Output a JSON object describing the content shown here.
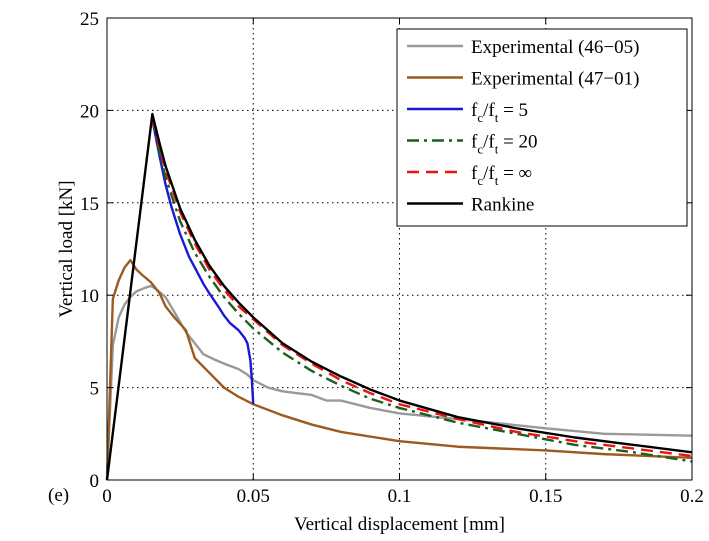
{
  "panel_label": "(e)",
  "chart_data": {
    "type": "line",
    "xlabel": "Vertical displacement [mm]",
    "ylabel": "Vertical load [kN]",
    "xlim": [
      0,
      0.2
    ],
    "ylim": [
      0,
      25
    ],
    "xticks": [
      0,
      0.05,
      0.1,
      0.15,
      0.2
    ],
    "xtick_labels": [
      "0",
      "0.05",
      "0.1",
      "0.15",
      "0.2"
    ],
    "yticks": [
      0,
      5,
      10,
      15,
      20,
      25
    ],
    "ytick_labels": [
      "0",
      "5",
      "10",
      "15",
      "20",
      "25"
    ],
    "grid": true,
    "grid_style": "dotted",
    "legend_position": "top-right",
    "series": [
      {
        "name": "Experimental (46−05)",
        "color": "#999999",
        "dash": "solid",
        "x": [
          0,
          0.002,
          0.004,
          0.006,
          0.008,
          0.01,
          0.013,
          0.015,
          0.017,
          0.02,
          0.023,
          0.027,
          0.03,
          0.033,
          0.037,
          0.04,
          0.045,
          0.048,
          0.05,
          0.055,
          0.06,
          0.065,
          0.07,
          0.075,
          0.08,
          0.09,
          0.1,
          0.12,
          0.15,
          0.17,
          0.2
        ],
        "y": [
          0,
          7.3,
          8.8,
          9.5,
          9.9,
          10.2,
          10.4,
          10.5,
          10.3,
          9.9,
          9.1,
          8.0,
          7.4,
          6.8,
          6.5,
          6.3,
          6.0,
          5.7,
          5.4,
          5.0,
          4.8,
          4.7,
          4.6,
          4.3,
          4.3,
          3.9,
          3.6,
          3.3,
          2.8,
          2.5,
          2.4
        ]
      },
      {
        "name": "Experimental (47−01)",
        "color": "#9c5a1e",
        "dash": "solid",
        "x": [
          0,
          0.002,
          0.004,
          0.006,
          0.008,
          0.01,
          0.012,
          0.015,
          0.018,
          0.02,
          0.023,
          0.027,
          0.03,
          0.035,
          0.04,
          0.045,
          0.05,
          0.06,
          0.07,
          0.08,
          0.1,
          0.12,
          0.15,
          0.17,
          0.2
        ],
        "y": [
          0,
          9.8,
          10.8,
          11.5,
          11.9,
          11.4,
          11.1,
          10.7,
          10.1,
          9.4,
          8.8,
          8.1,
          6.6,
          5.8,
          5.0,
          4.5,
          4.1,
          3.5,
          3.0,
          2.6,
          2.1,
          1.8,
          1.6,
          1.4,
          1.2
        ]
      },
      {
        "name": "f_c/f_t = 5",
        "label_parts": [
          "f",
          "c",
          "/f",
          "t",
          " = 5"
        ],
        "color": "#1a1ad6",
        "dash": "solid",
        "x": [
          0.0155,
          0.018,
          0.02,
          0.022,
          0.025,
          0.028,
          0.03,
          0.033,
          0.035,
          0.038,
          0.04,
          0.042,
          0.045,
          0.047,
          0.048,
          0.049,
          0.0495,
          0.05
        ],
        "y": [
          19.5,
          17.5,
          16.0,
          14.8,
          13.3,
          12.1,
          11.5,
          10.6,
          10.1,
          9.4,
          8.9,
          8.5,
          8.1,
          7.7,
          7.4,
          6.5,
          5.5,
          4.1
        ]
      },
      {
        "name": "f_c/f_t = 20",
        "label_parts": [
          "f",
          "c",
          "/f",
          "t",
          " = 20"
        ],
        "color": "#1e5e1e",
        "dash": "dashdot",
        "x": [
          0.0155,
          0.018,
          0.02,
          0.025,
          0.03,
          0.035,
          0.04,
          0.045,
          0.05,
          0.06,
          0.07,
          0.08,
          0.09,
          0.1,
          0.12,
          0.14,
          0.16,
          0.18,
          0.2
        ],
        "y": [
          19.5,
          17.7,
          16.4,
          14.0,
          12.3,
          11.0,
          9.9,
          9.0,
          8.2,
          6.9,
          5.9,
          5.1,
          4.4,
          3.9,
          3.1,
          2.5,
          1.9,
          1.5,
          1.0
        ]
      },
      {
        "name": "f_c/f_t = ∞",
        "label_parts": [
          "f",
          "c",
          "/f",
          "t",
          " = ∞"
        ],
        "color": "#ee1111",
        "dash": "dash",
        "x": [
          0.0155,
          0.018,
          0.02,
          0.025,
          0.03,
          0.035,
          0.04,
          0.045,
          0.05,
          0.06,
          0.07,
          0.08,
          0.09,
          0.1,
          0.12,
          0.14,
          0.16,
          0.18,
          0.2
        ],
        "y": [
          19.6,
          18.0,
          16.8,
          14.5,
          12.8,
          11.4,
          10.3,
          9.4,
          8.7,
          7.3,
          6.3,
          5.4,
          4.7,
          4.1,
          3.3,
          2.6,
          2.1,
          1.7,
          1.3
        ]
      },
      {
        "name": "Rankine",
        "color": "#000000",
        "dash": "solid",
        "x": [
          0,
          0.0155,
          0.018,
          0.02,
          0.025,
          0.03,
          0.035,
          0.04,
          0.045,
          0.05,
          0.06,
          0.07,
          0.08,
          0.09,
          0.1,
          0.12,
          0.14,
          0.16,
          0.18,
          0.2
        ],
        "y": [
          0,
          19.8,
          18.2,
          17.0,
          14.7,
          13.0,
          11.6,
          10.5,
          9.6,
          8.8,
          7.4,
          6.4,
          5.6,
          4.9,
          4.3,
          3.4,
          2.8,
          2.3,
          1.9,
          1.5
        ]
      }
    ]
  }
}
